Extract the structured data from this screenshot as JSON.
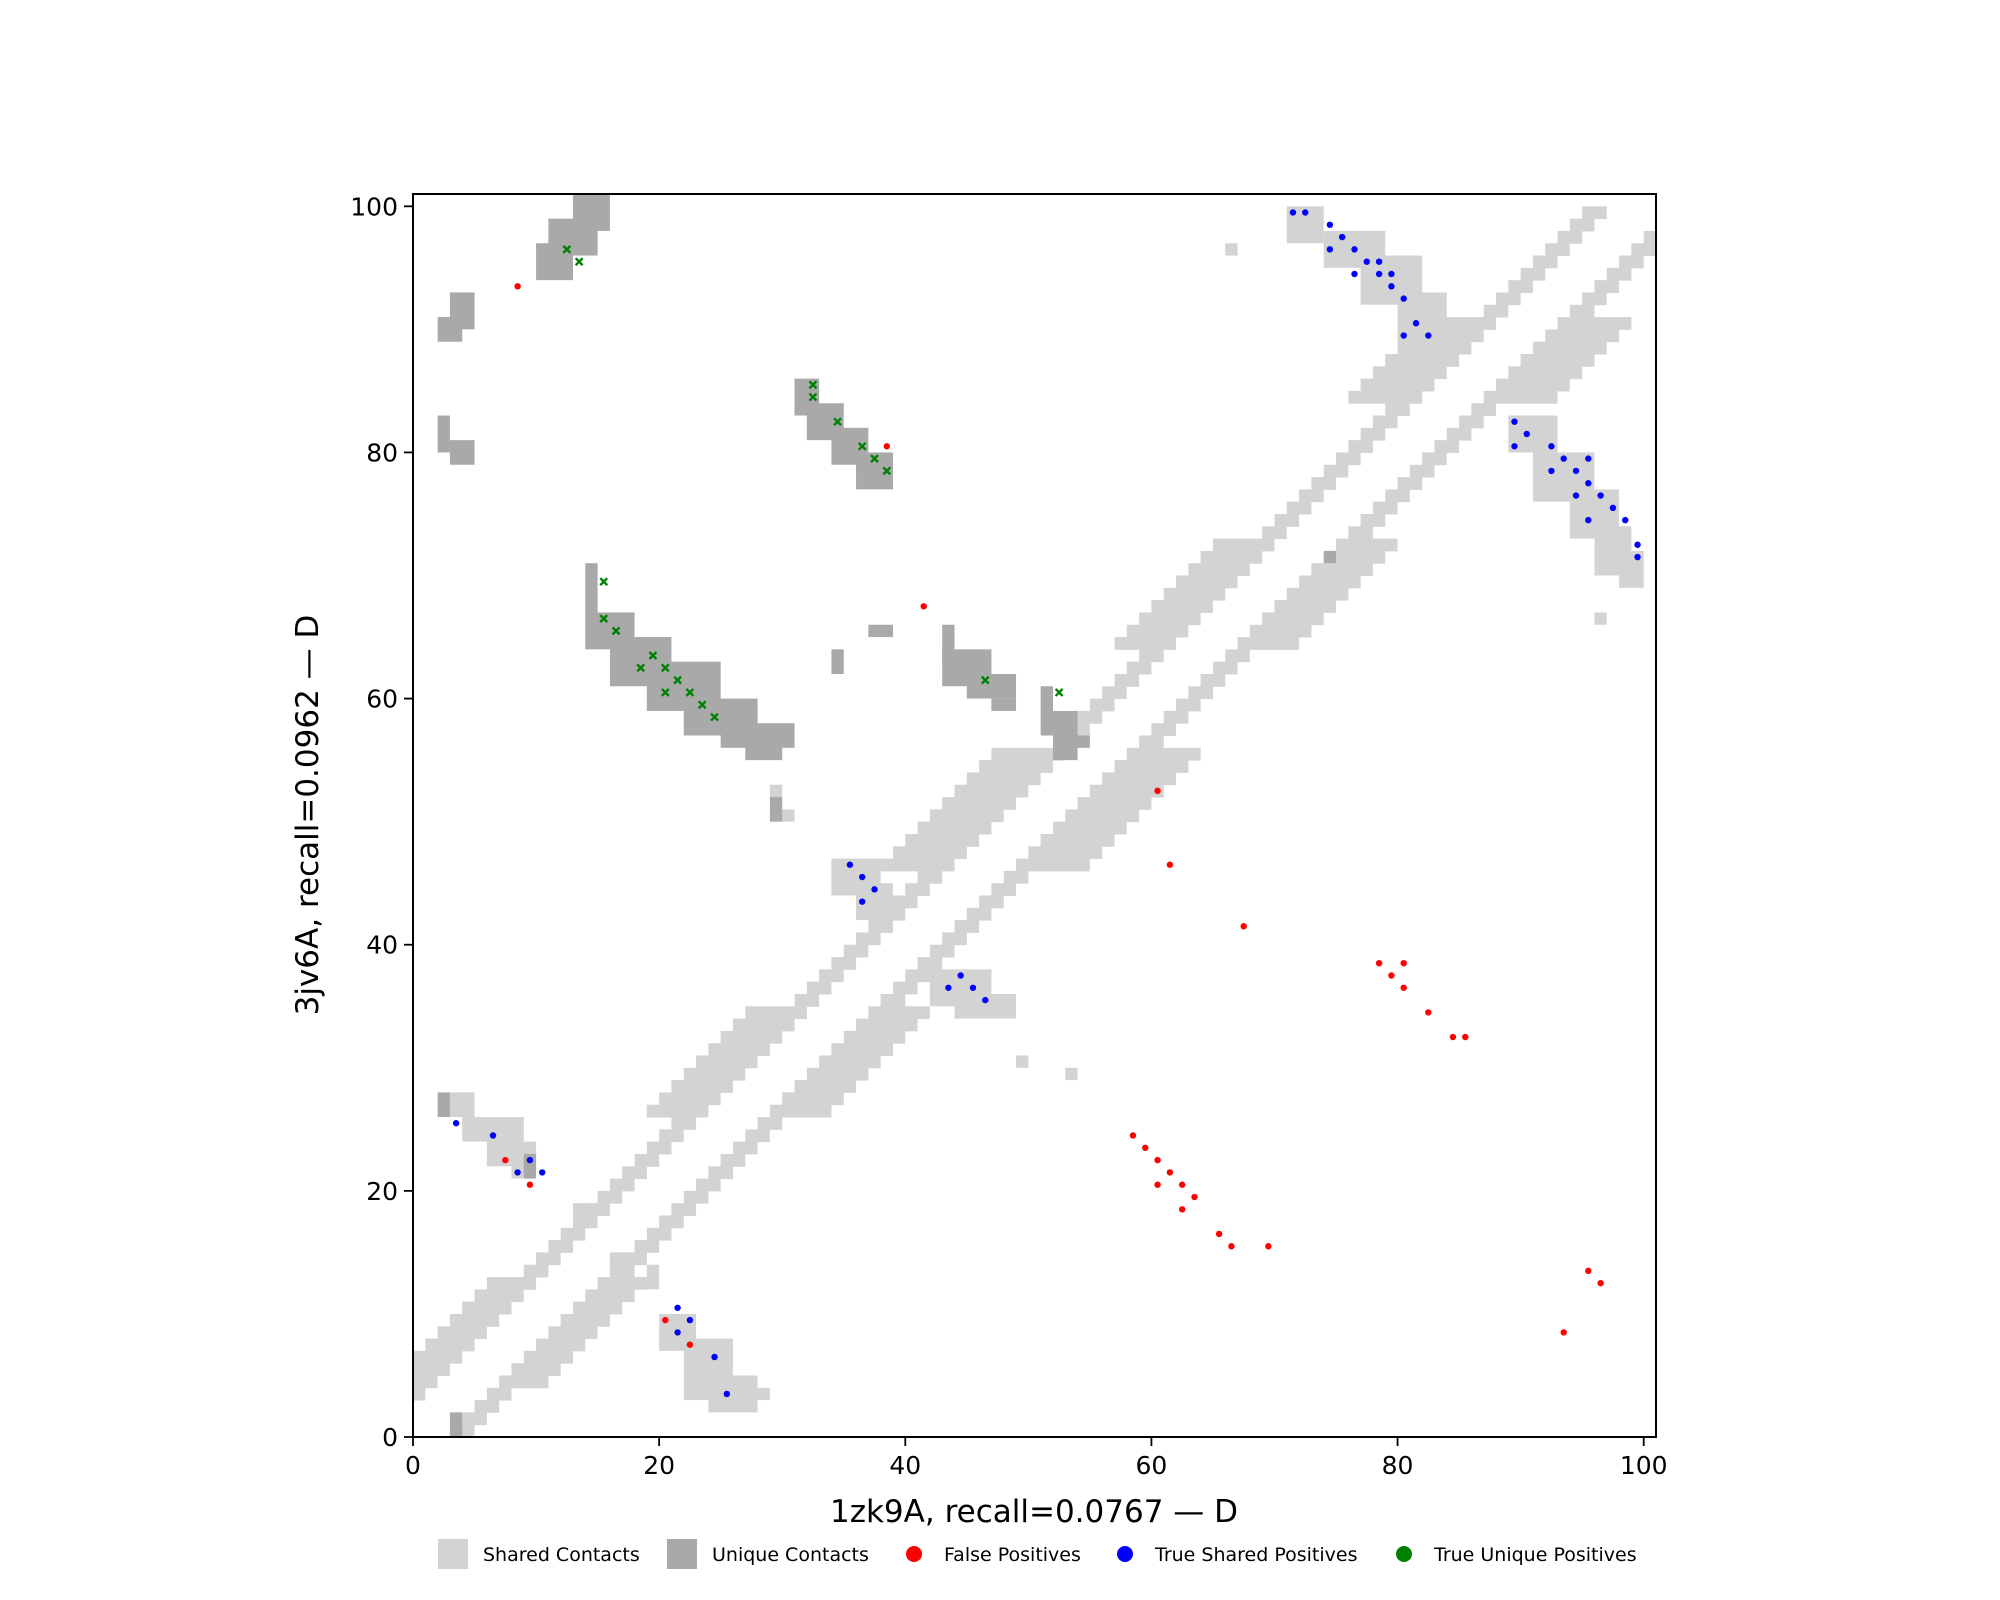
{
  "chart_data": {
    "type": "scatter",
    "title": "",
    "xlabel": "1zk9A, recall=0.0767 — D",
    "ylabel": "3jv6A, recall=0.0962 — D",
    "xlim": [
      0,
      101
    ],
    "ylim": [
      0,
      101
    ],
    "xticks": [
      0,
      20,
      40,
      60,
      80,
      100
    ],
    "yticks": [
      0,
      20,
      40,
      60,
      80,
      100
    ],
    "grid": false,
    "legend_position": "bottom",
    "colors": {
      "shared": "#d3d3d3",
      "unique": "#a9a9a9",
      "false_pos": "#ff0000",
      "true_shared": "#0000ff",
      "true_unique": "#008000"
    },
    "legend": [
      {
        "label": "Shared Contacts",
        "kind": "square",
        "color": "#d3d3d3"
      },
      {
        "label": "Unique Contacts",
        "kind": "square",
        "color": "#a9a9a9"
      },
      {
        "label": "False Positives",
        "kind": "dot",
        "color": "#ff0000"
      },
      {
        "label": "True Shared Positives",
        "kind": "dot",
        "color": "#0000ff"
      },
      {
        "label": "True Unique Positives",
        "kind": "dot",
        "color": "#008000"
      }
    ],
    "shared_diagonal_band": {
      "min_offset": 2,
      "max_offset": 4
    },
    "shared_diagonal_thick": [
      {
        "from": 4,
        "to": 12,
        "extra": 2
      },
      {
        "from": 26,
        "to": 34,
        "extra": 3
      },
      {
        "from": 46,
        "to": 55,
        "extra": 4
      },
      {
        "from": 64,
        "to": 72,
        "extra": 3
      },
      {
        "from": 84,
        "to": 90,
        "extra": 4
      }
    ],
    "shared_blocks": [
      [
        3,
        28,
        5,
        26
      ],
      [
        4,
        26,
        9,
        24
      ],
      [
        6,
        24,
        10,
        22
      ],
      [
        8,
        23,
        10,
        21
      ],
      [
        20,
        10,
        23,
        7
      ],
      [
        22,
        8,
        26,
        3
      ],
      [
        24,
        5,
        28,
        2
      ],
      [
        25,
        4,
        29,
        3
      ],
      [
        34,
        47,
        38,
        44
      ],
      [
        36,
        45,
        39,
        42
      ],
      [
        42,
        38,
        47,
        35
      ],
      [
        44,
        36,
        49,
        34
      ],
      [
        71,
        100,
        74,
        97
      ],
      [
        74,
        98,
        79,
        95
      ],
      [
        77,
        96,
        82,
        92
      ],
      [
        80,
        93,
        84,
        89
      ],
      [
        89,
        83,
        93,
        80
      ],
      [
        91,
        80,
        96,
        76
      ],
      [
        94,
        77,
        98,
        73
      ],
      [
        96,
        74,
        99,
        70
      ],
      [
        98,
        72,
        100,
        69
      ],
      [
        29,
        53,
        30,
        52
      ],
      [
        29,
        51,
        31,
        50
      ],
      [
        49,
        31,
        50,
        30
      ],
      [
        53,
        30,
        54,
        29
      ],
      [
        13,
        19,
        15,
        18
      ],
      [
        66,
        97,
        67,
        96
      ],
      [
        96,
        67,
        97,
        66
      ],
      [
        16,
        15,
        17,
        13
      ],
      [
        19,
        14,
        20,
        12
      ]
    ],
    "unique_blocks": [
      [
        13,
        101,
        16,
        98
      ],
      [
        11,
        99,
        15,
        96
      ],
      [
        10,
        97,
        13,
        94
      ],
      [
        3,
        93,
        5,
        90
      ],
      [
        2,
        91,
        4,
        89
      ],
      [
        2,
        83,
        3,
        80
      ],
      [
        3,
        81,
        5,
        79
      ],
      [
        31,
        86,
        33,
        83
      ],
      [
        32,
        84,
        35,
        81
      ],
      [
        34,
        82,
        37,
        79
      ],
      [
        36,
        80,
        39,
        77
      ],
      [
        14,
        71,
        15,
        67
      ],
      [
        14,
        67,
        18,
        64
      ],
      [
        16,
        65,
        21,
        61
      ],
      [
        19,
        63,
        25,
        59
      ],
      [
        22,
        60,
        28,
        57
      ],
      [
        25,
        58,
        31,
        56
      ],
      [
        27,
        57,
        30,
        55
      ],
      [
        43,
        66,
        44,
        63
      ],
      [
        43,
        64,
        47,
        61
      ],
      [
        45,
        62,
        49,
        60
      ],
      [
        47,
        60,
        49,
        59
      ],
      [
        37,
        66,
        39,
        65
      ],
      [
        34,
        64,
        35,
        62
      ],
      [
        51,
        61,
        52,
        57
      ],
      [
        52,
        59,
        54,
        55
      ],
      [
        53,
        57,
        55,
        56
      ],
      [
        2,
        28,
        3,
        26
      ],
      [
        9,
        23,
        10,
        21
      ],
      [
        3,
        2,
        4,
        0
      ],
      [
        29,
        52,
        30,
        50
      ],
      [
        74,
        72,
        75,
        71
      ]
    ],
    "false_positives": {
      "x": [
        8,
        38,
        41,
        60,
        61,
        67,
        78,
        79,
        80,
        80,
        82,
        84,
        85,
        58,
        59,
        60,
        61,
        62,
        63,
        60,
        62,
        65,
        66,
        69,
        95,
        96,
        93,
        7,
        9,
        20,
        22
      ],
      "y": [
        93,
        80,
        67,
        52,
        46,
        41,
        38,
        37,
        38,
        36,
        34,
        32,
        32,
        24,
        23,
        22,
        21,
        20,
        19,
        20,
        18,
        16,
        15,
        15,
        13,
        12,
        8,
        22,
        20,
        9,
        7
      ]
    },
    "true_shared_positives": {
      "x": [
        71,
        72,
        74,
        75,
        74,
        76,
        77,
        78,
        79,
        76,
        78,
        79,
        80,
        81,
        80,
        82,
        89,
        90,
        89,
        92,
        93,
        95,
        92,
        94,
        95,
        94,
        96,
        97,
        95,
        98,
        99,
        99,
        35,
        36,
        37,
        36,
        43,
        44,
        45,
        46,
        3,
        6,
        8,
        9,
        10,
        21,
        22,
        21,
        24,
        25
      ],
      "y": [
        99,
        99,
        98,
        97,
        96,
        96,
        95,
        95,
        94,
        94,
        94,
        93,
        92,
        90,
        89,
        89,
        82,
        81,
        80,
        80,
        79,
        79,
        78,
        78,
        77,
        76,
        76,
        75,
        74,
        74,
        72,
        71,
        46,
        45,
        44,
        43,
        36,
        37,
        36,
        35,
        25,
        24,
        21,
        22,
        21,
        10,
        9,
        8,
        6,
        3
      ]
    },
    "true_unique_positives": {
      "x": [
        12,
        13,
        32,
        32,
        34,
        36,
        37,
        38,
        15,
        15,
        16,
        18,
        19,
        20,
        20,
        21,
        22,
        23,
        24,
        46,
        52
      ],
      "y": [
        96,
        95,
        85,
        84,
        82,
        80,
        79,
        78,
        69,
        66,
        65,
        62,
        63,
        62,
        60,
        61,
        60,
        59,
        58,
        61,
        60
      ]
    }
  }
}
